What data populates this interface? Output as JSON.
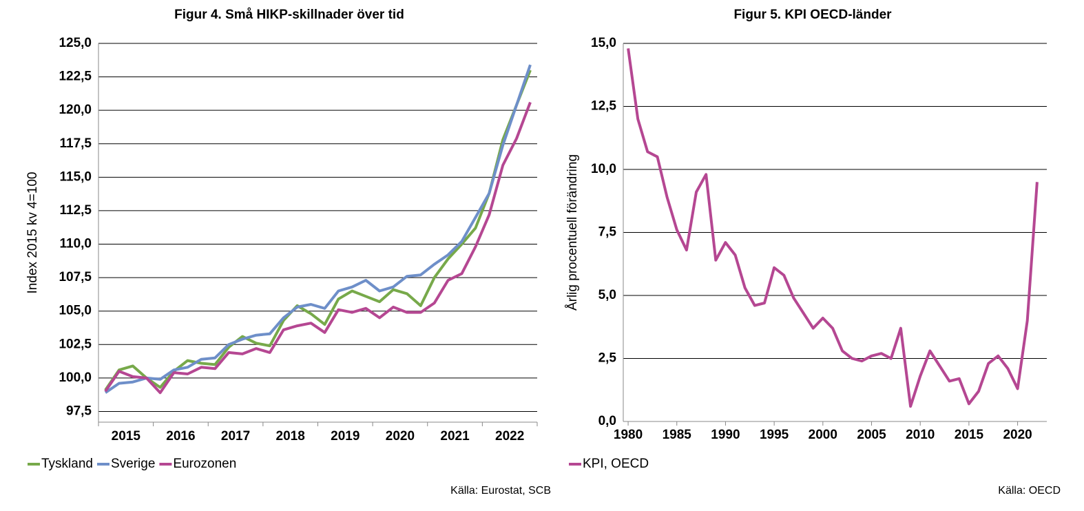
{
  "chart_data": [
    {
      "type": "line",
      "title": "Figur 4. Små HIKP-skillnader över tid",
      "y_label": "Index 2015 kv 4=100",
      "categories": [
        "2015",
        null,
        null,
        null,
        "2016",
        null,
        null,
        null,
        "2017",
        null,
        null,
        null,
        "2018",
        null,
        null,
        null,
        "2019",
        null,
        null,
        null,
        "2020",
        null,
        null,
        null,
        "2021",
        null,
        null,
        null,
        "2022",
        null,
        null,
        null
      ],
      "series": [
        {
          "name": "Tyskland",
          "color": "#77a94a",
          "values": [
            99.1,
            100.6,
            100.9,
            100.0,
            99.3,
            100.5,
            101.3,
            101.1,
            101.0,
            102.3,
            103.1,
            102.6,
            102.4,
            104.3,
            105.4,
            104.8,
            104.0,
            105.9,
            106.5,
            106.1,
            105.7,
            106.6,
            106.3,
            105.4,
            107.5,
            108.9,
            110.0,
            111.2,
            113.8,
            117.8,
            120.4,
            123.0
          ]
        },
        {
          "name": "Sverige",
          "color": "#6e8fc9",
          "values": [
            98.9,
            99.6,
            99.7,
            100.0,
            99.9,
            100.6,
            100.8,
            101.4,
            101.5,
            102.5,
            102.9,
            103.2,
            103.3,
            104.5,
            105.3,
            105.5,
            105.2,
            106.5,
            106.8,
            107.3,
            106.5,
            106.8,
            107.6,
            107.7,
            108.5,
            109.2,
            110.2,
            112.0,
            113.8,
            117.4,
            120.4,
            123.4
          ]
        },
        {
          "name": "Eurozonen",
          "color": "#b54792",
          "values": [
            99.0,
            100.5,
            100.1,
            100.0,
            98.9,
            100.4,
            100.3,
            100.8,
            100.7,
            101.9,
            101.8,
            102.2,
            101.9,
            103.6,
            103.9,
            104.1,
            103.4,
            105.1,
            104.9,
            105.2,
            104.5,
            105.3,
            104.9,
            104.9,
            105.6,
            107.3,
            107.8,
            109.8,
            112.2,
            115.9,
            117.9,
            120.6
          ]
        }
      ],
      "ylim": [
        96.7,
        125
      ],
      "yticks": [
        {
          "value": 97.5,
          "label": "97,5"
        },
        {
          "value": 100,
          "label": "100,0"
        },
        {
          "value": 102.5,
          "label": "102,5"
        },
        {
          "value": 105,
          "label": "105,0"
        },
        {
          "value": 107.5,
          "label": "107,5"
        },
        {
          "value": 110,
          "label": "110,0"
        },
        {
          "value": 112.5,
          "label": "112,5"
        },
        {
          "value": 115,
          "label": "115,0"
        },
        {
          "value": 117.5,
          "label": "117,5"
        },
        {
          "value": 120,
          "label": "120,0"
        },
        {
          "value": 122.5,
          "label": "122,5"
        },
        {
          "value": 125,
          "label": "125,0"
        }
      ],
      "grid": true,
      "legend": "bottom-left",
      "source": "Källa: Eurostat, SCB"
    },
    {
      "type": "line",
      "title": "Figur 5. KPI OECD-länder",
      "y_label": "Årlig procentuell förändring",
      "x": [
        1980,
        1981,
        1982,
        1983,
        1984,
        1985,
        1986,
        1987,
        1988,
        1989,
        1990,
        1991,
        1992,
        1993,
        1994,
        1995,
        1996,
        1997,
        1998,
        1999,
        2000,
        2001,
        2002,
        2003,
        2004,
        2005,
        2006,
        2007,
        2008,
        2009,
        2010,
        2011,
        2012,
        2013,
        2014,
        2015,
        2016,
        2017,
        2018,
        2019,
        2020,
        2021,
        2022
      ],
      "series": [
        {
          "name": "KPI, OECD",
          "color": "#b54792",
          "values": [
            14.8,
            12.0,
            10.7,
            10.5,
            8.9,
            7.6,
            6.8,
            9.1,
            9.8,
            6.4,
            7.1,
            6.6,
            5.3,
            4.6,
            4.7,
            6.1,
            5.8,
            4.9,
            4.3,
            3.7,
            4.1,
            3.7,
            2.8,
            2.5,
            2.4,
            2.6,
            2.7,
            2.5,
            3.7,
            0.6,
            1.8,
            2.8,
            2.2,
            1.6,
            1.7,
            0.7,
            1.2,
            2.3,
            2.6,
            2.1,
            1.3,
            4.0,
            9.5
          ]
        }
      ],
      "xlim": [
        1979.5,
        2023
      ],
      "xticks": [
        1980,
        1985,
        1990,
        1995,
        2000,
        2005,
        2010,
        2015,
        2020
      ],
      "ylim": [
        0,
        15
      ],
      "yticks": [
        {
          "value": 0,
          "label": "0,0"
        },
        {
          "value": 2.5,
          "label": "2,5"
        },
        {
          "value": 5,
          "label": "5,0"
        },
        {
          "value": 7.5,
          "label": "7,5"
        },
        {
          "value": 10,
          "label": "10,0"
        },
        {
          "value": 12.5,
          "label": "12,5"
        },
        {
          "value": 15,
          "label": "15,0"
        }
      ],
      "grid": true,
      "legend": "bottom-left",
      "source": "Källa: OECD"
    }
  ]
}
